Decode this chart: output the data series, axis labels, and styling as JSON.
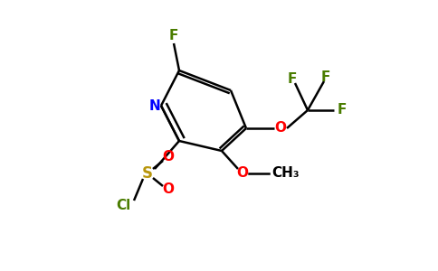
{
  "bg_color": "#ffffff",
  "bond_color": "#000000",
  "atom_colors": {
    "F": "#4a7c00",
    "N": "#0000ff",
    "O": "#ff0000",
    "S": "#b8960c",
    "Cl": "#4a7c00",
    "C": "#000000"
  },
  "figsize": [
    4.84,
    3.0
  ],
  "dpi": 100,
  "lw": 1.8
}
